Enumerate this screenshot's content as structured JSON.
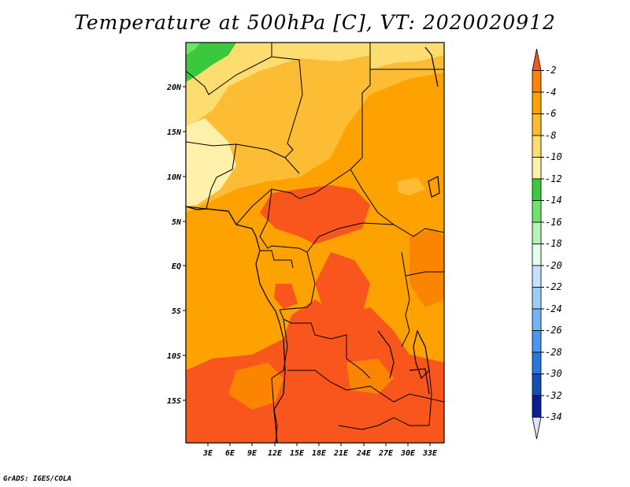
{
  "title": "Temperature at 500hPa [C], VT: 2020020912",
  "credit": "GrADS: IGES/COLA",
  "map": {
    "lat_labels": [
      "20N",
      "15N",
      "10N",
      "5N",
      "EQ",
      "5S",
      "10S",
      "15S"
    ],
    "lon_labels": [
      "3E",
      "6E",
      "9E",
      "12E",
      "15E",
      "18E",
      "21E",
      "24E",
      "27E",
      "30E",
      "33E"
    ]
  },
  "colorbar": {
    "levels": [
      "-2",
      "-4",
      "-6",
      "-8",
      "-10",
      "-12",
      "-14",
      "-16",
      "-18",
      "-20",
      "-22",
      "-24",
      "-26",
      "-28",
      "-30",
      "-32",
      "-34"
    ],
    "colors": [
      "#f8561c",
      "#fb8400",
      "#fda200",
      "#fcbc34",
      "#fddc70",
      "#fff0ab",
      "#3cc83c",
      "#6ee46e",
      "#b4f5b4",
      "#e6fff0",
      "#c4e2ff",
      "#9ccdf8",
      "#73b4f5",
      "#4b96f0",
      "#2878dc",
      "#1250b4",
      "#0a1e96",
      "#e0e0ff"
    ]
  }
}
